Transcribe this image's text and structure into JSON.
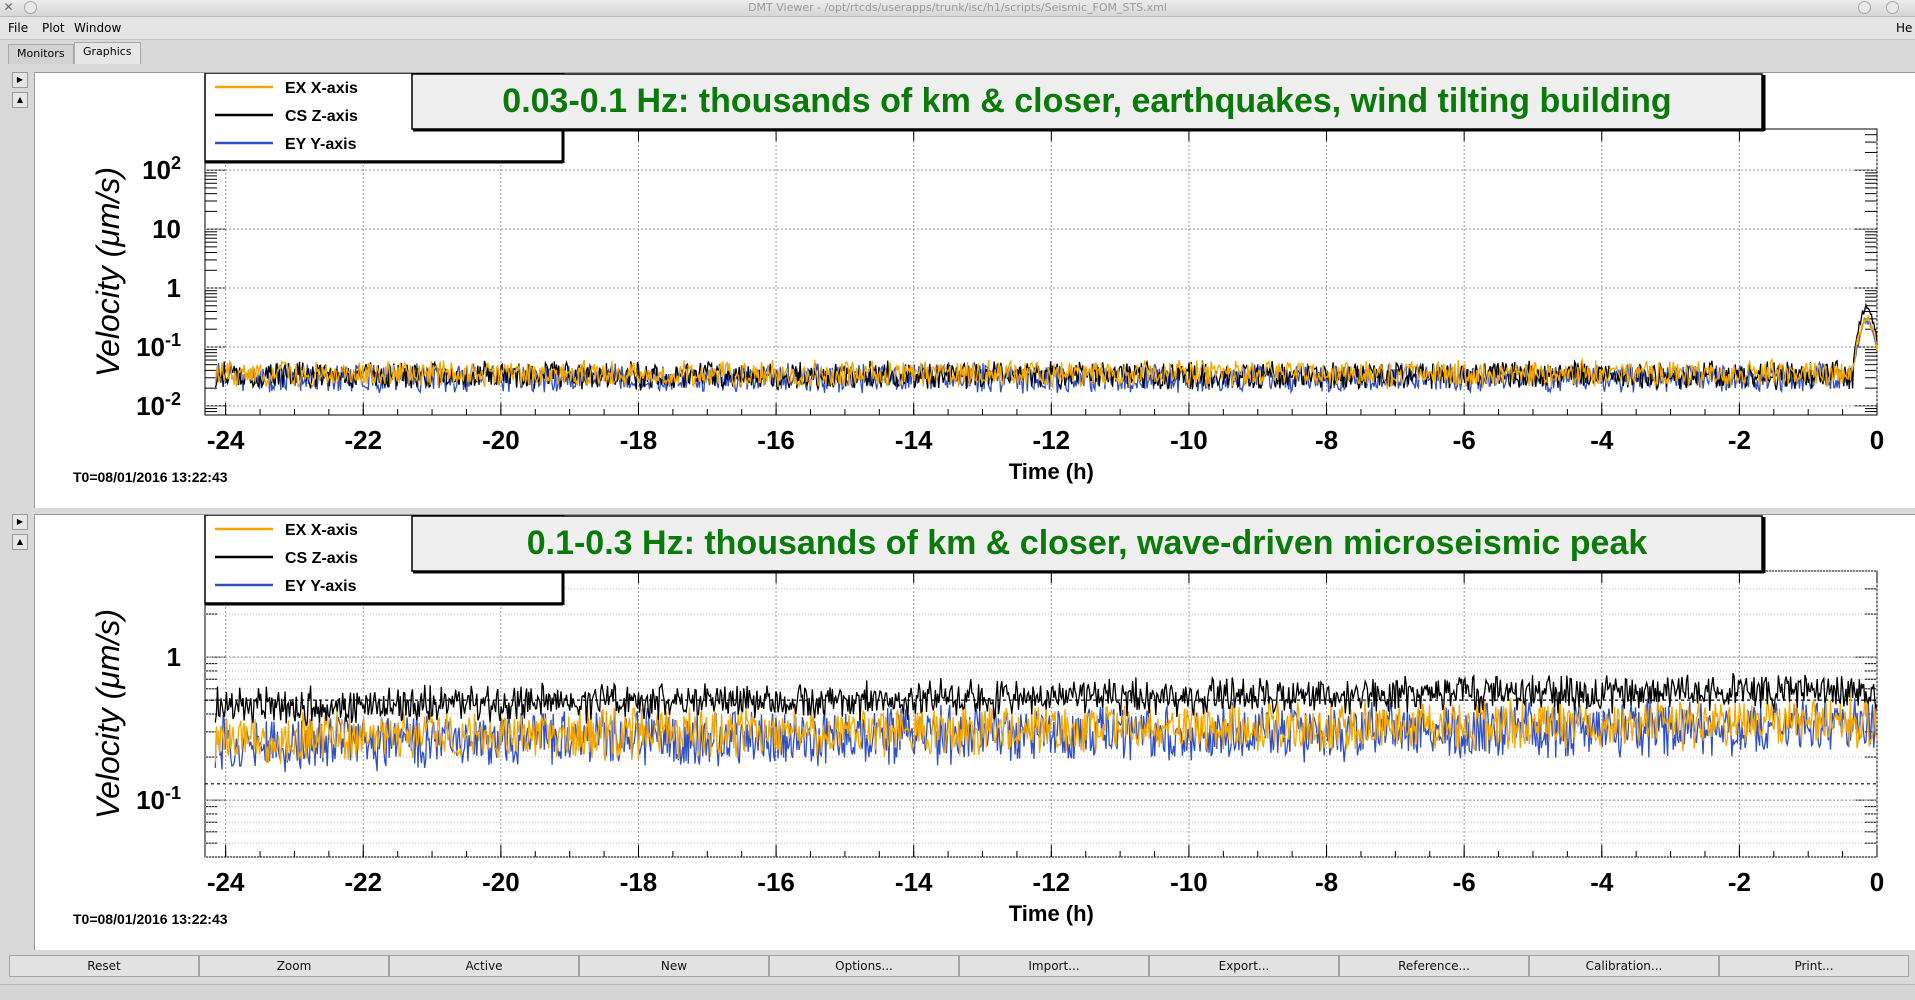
{
  "window": {
    "title": "DMT Viewer - /opt/rtcds/userapps/trunk/isc/h1/scripts/Seismic_FOM_STS.xml",
    "close_glyph": "✕",
    "help_label": "He"
  },
  "menu": {
    "items": [
      "File",
      "Plot",
      "Window"
    ]
  },
  "tabs": [
    {
      "label": "Monitors",
      "active": false
    },
    {
      "label": "Graphics",
      "active": true
    }
  ],
  "colors": {
    "ex": "#f5a700",
    "cs": "#000000",
    "ey": "#3050c8",
    "annotation": "#0a7a0a"
  },
  "legend": {
    "ex": "EX X-axis",
    "cs": "CS Z-axis",
    "ey": "EY Y-axis"
  },
  "chart_data": [
    {
      "type": "line",
      "title": "0.03-0.1 Hz: thousands of km & closer, earthquakes, wind tilting building",
      "xlabel": "Time (h)",
      "ylabel": "Velocity  (μm/s)",
      "xlim": [
        -24.3,
        0
      ],
      "ylim": [
        0.007,
        500
      ],
      "log_y": true,
      "grid": true,
      "legend_position": "top-left",
      "x_ticks": [
        "-24",
        "-22",
        "-20",
        "-18",
        "-16",
        "-14",
        "-12",
        "-10",
        "-8",
        "-6",
        "-4",
        "-2",
        "0"
      ],
      "y_ticks": [
        {
          "base": "10",
          "exp": "-2",
          "value": 0.01
        },
        {
          "base": "10",
          "exp": "-1",
          "value": 0.1
        },
        {
          "base": "1",
          "exp": "",
          "value": 1
        },
        {
          "base": "10",
          "exp": "",
          "value": 10
        },
        {
          "base": "10",
          "exp": "2",
          "value": 100
        }
      ],
      "t0_label": "T0=08/01/2016 13:22:43",
      "series": [
        {
          "name": "EX X-axis",
          "key": "ex",
          "baseline": 0.035,
          "noise": 0.2,
          "spike": 0.3
        },
        {
          "name": "CS Z-axis",
          "key": "cs",
          "baseline": 0.033,
          "noise": 0.21,
          "spike": 0.45
        },
        {
          "name": "EY Y-axis",
          "key": "ey",
          "baseline": 0.03,
          "noise": 0.22,
          "spike": 0.28
        }
      ]
    },
    {
      "type": "line",
      "title": "0.1-0.3 Hz: thousands of km & closer, wave-driven microseismic peak",
      "xlabel": "Time (h)",
      "ylabel": "Velocity  (μm/s)",
      "xlim": [
        -24.3,
        0
      ],
      "ylim": [
        0.04,
        4
      ],
      "log_y": true,
      "grid": true,
      "legend_position": "top-left",
      "reference_lines": [
        0.13,
        0.5
      ],
      "x_ticks": [
        "-24",
        "-22",
        "-20",
        "-18",
        "-16",
        "-14",
        "-12",
        "-10",
        "-8",
        "-6",
        "-4",
        "-2",
        "0"
      ],
      "y_ticks": [
        {
          "base": "10",
          "exp": "-1",
          "value": 0.1
        },
        {
          "base": "1",
          "exp": "",
          "value": 1
        }
      ],
      "t0_label": "T0=08/01/2016 13:22:43",
      "series": [
        {
          "name": "EX X-axis",
          "key": "ex",
          "baseline": 0.27,
          "noise": 0.15,
          "spike": 0
        },
        {
          "name": "CS Z-axis",
          "key": "cs",
          "baseline": 0.45,
          "noise": 0.1,
          "spike": 0
        },
        {
          "name": "EY Y-axis",
          "key": "ey",
          "baseline": 0.25,
          "noise": 0.17,
          "spike": 0
        }
      ]
    }
  ],
  "buttons": [
    "Reset",
    "Zoom",
    "Active",
    "New",
    "Options...",
    "Import...",
    "Export...",
    "Reference...",
    "Calibration...",
    "Print..."
  ]
}
